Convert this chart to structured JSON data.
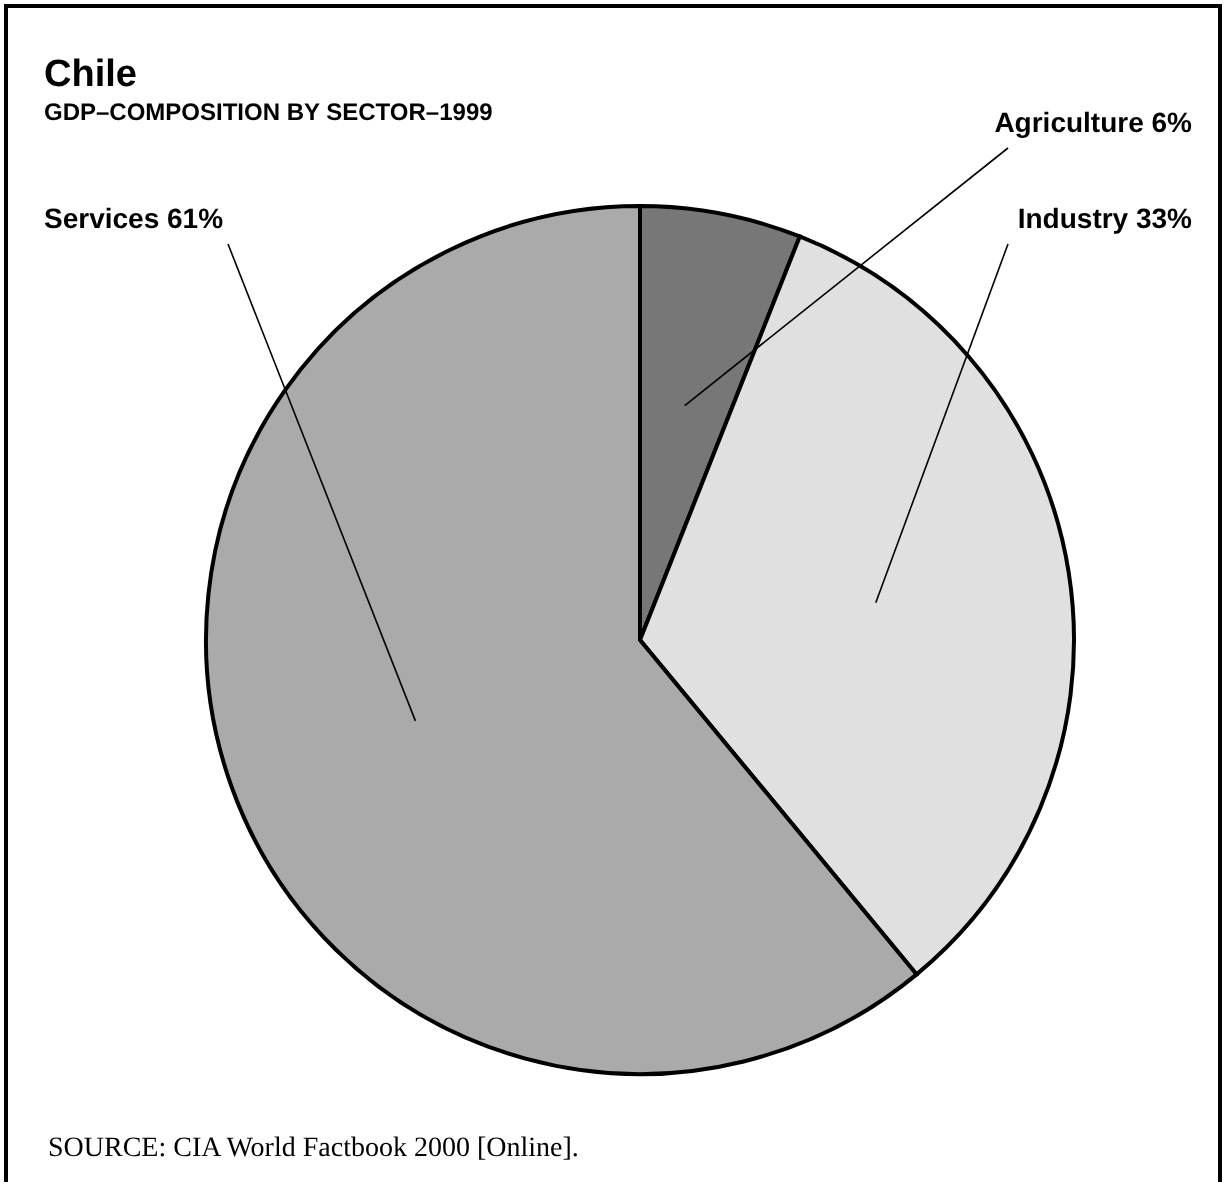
{
  "chart_data": {
    "type": "pie",
    "title": "Chile",
    "subtitle": "GDP–COMPOSITION BY SECTOR–1999",
    "categories": [
      "Agriculture",
      "Industry",
      "Services"
    ],
    "values": [
      6,
      33,
      61
    ],
    "value_labels": [
      "6%",
      "33%",
      "61%"
    ],
    "colors": [
      "#777777",
      "#e0e0e0",
      "#aaaaaa"
    ],
    "legend": false,
    "annotations": [
      "SOURCE: CIA World Factbook 2000 [Online]."
    ]
  }
}
